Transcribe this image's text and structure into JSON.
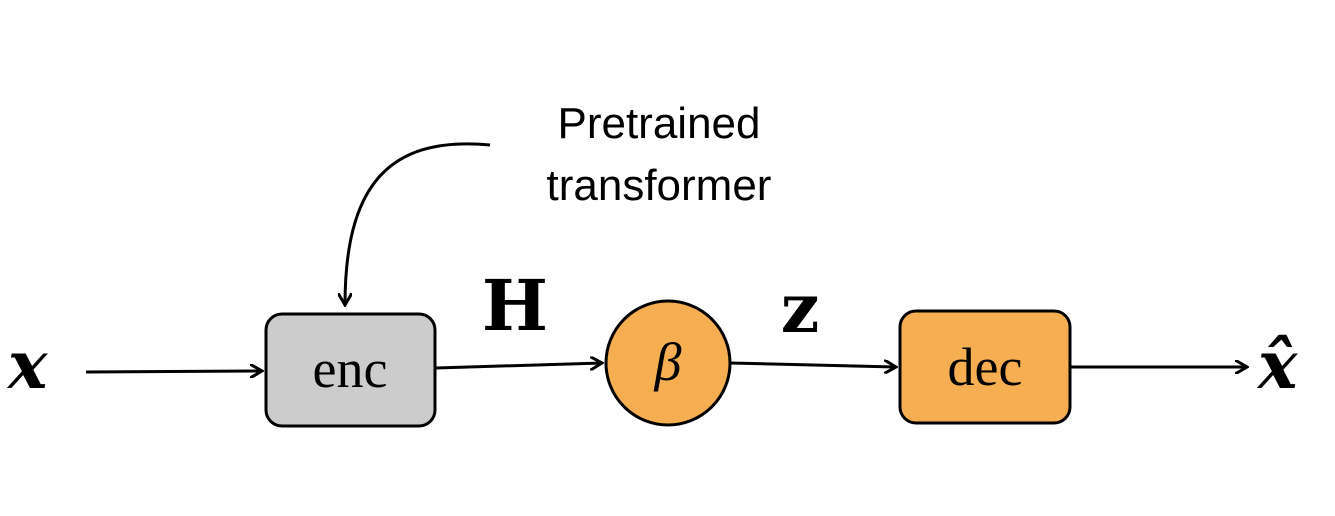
{
  "diagram": {
    "input_label": "x",
    "output_label": "x̂",
    "annotation": {
      "line1": "Pretrained",
      "line2": "transformer"
    },
    "nodes": {
      "encoder": {
        "label": "enc",
        "fill": "#cccccc"
      },
      "bottleneck": {
        "label": "β",
        "fill": "#f5ae52"
      },
      "decoder": {
        "label": "dec",
        "fill": "#f5ae52"
      }
    },
    "edges": {
      "enc_to_beta": "H",
      "beta_to_dec": "z"
    },
    "colors": {
      "stroke": "#000000",
      "background": "#ffffff"
    }
  }
}
